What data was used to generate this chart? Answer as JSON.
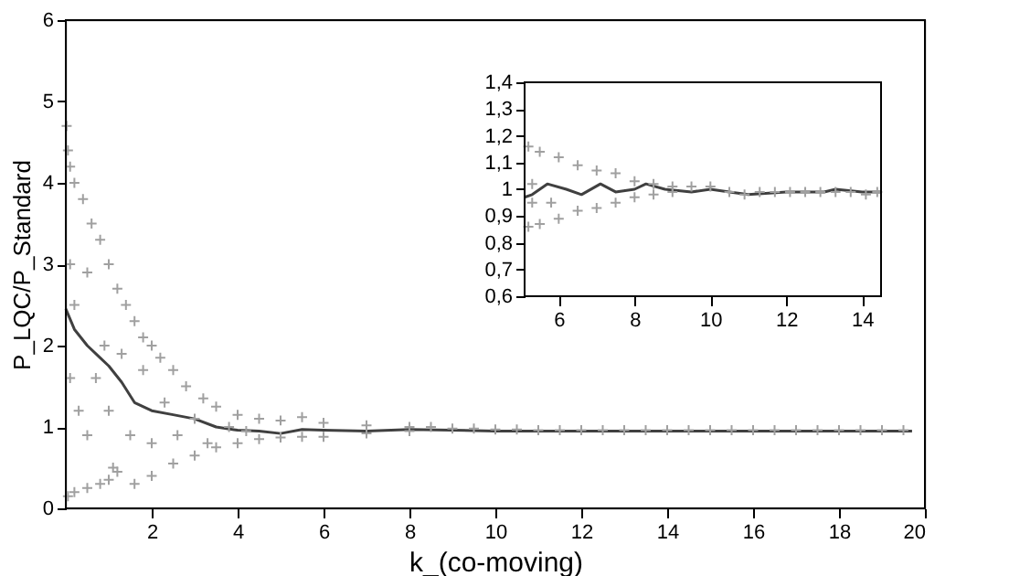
{
  "chart_data": [
    {
      "type": "scatter",
      "xlabel": "k_(co-moving)",
      "ylabel": "P_LQC/P_Standard",
      "xlim": [
        0,
        20
      ],
      "ylim": [
        0,
        6
      ],
      "xticks": [
        2,
        4,
        6,
        8,
        10,
        12,
        14,
        16,
        18,
        20
      ],
      "yticks": [
        0,
        1,
        2,
        3,
        4,
        5,
        6
      ],
      "grid": false,
      "series": [
        {
          "type": "scatter",
          "marker": "cross",
          "color": "#a0a0a0",
          "x": [
            0.02,
            0.05,
            0.1,
            0.2,
            0.4,
            0.6,
            0.8,
            1.0,
            1.2,
            1.4,
            1.6,
            1.8,
            2.0,
            2.2,
            2.5,
            2.8,
            3.2,
            3.5,
            4.0,
            4.5,
            5.0,
            5.5,
            6.0,
            7.0,
            8.0,
            0.05,
            0.2,
            0.5,
            0.8,
            1.0,
            1.2,
            1.6,
            2.0,
            2.5,
            3.0,
            3.5,
            4.0,
            4.5,
            5.0,
            5.5,
            6.0,
            7.0,
            8.0,
            0.1,
            0.1,
            0.2,
            0.3,
            0.5,
            0.5,
            0.7,
            0.9,
            1.0,
            1.1,
            1.3,
            1.5,
            1.8,
            2.0,
            2.3,
            2.6,
            3.0,
            3.3,
            3.8,
            4.2,
            8.5,
            9.0,
            9.5,
            10.0,
            10.5,
            11.0,
            11.5,
            12.0,
            12.5,
            13.0,
            13.5,
            14.0,
            14.5,
            15.0,
            15.5,
            16.0,
            16.5,
            17.0,
            17.5,
            18.0,
            18.5,
            19.0,
            19.5
          ],
          "values": [
            4.7,
            4.4,
            4.2,
            4.0,
            3.8,
            3.5,
            3.3,
            3.0,
            2.7,
            2.5,
            2.3,
            2.1,
            2.0,
            1.85,
            1.7,
            1.5,
            1.35,
            1.25,
            1.15,
            1.1,
            1.08,
            1.12,
            1.05,
            1.02,
            1.0,
            0.15,
            0.2,
            0.25,
            0.3,
            0.35,
            0.45,
            0.3,
            0.4,
            0.55,
            0.65,
            0.75,
            0.8,
            0.85,
            0.87,
            0.88,
            0.88,
            0.92,
            0.95,
            3.0,
            1.6,
            2.5,
            1.2,
            2.9,
            0.9,
            1.6,
            2.0,
            1.2,
            0.5,
            1.9,
            0.9,
            1.7,
            0.8,
            1.3,
            0.9,
            1.1,
            0.8,
            1.0,
            0.95,
            1.0,
            0.98,
            0.98,
            0.97,
            0.97,
            0.96,
            0.96,
            0.96,
            0.96,
            0.96,
            0.96,
            0.96,
            0.96,
            0.96,
            0.96,
            0.96,
            0.96,
            0.96,
            0.96,
            0.96,
            0.96,
            0.96,
            0.96
          ]
        },
        {
          "type": "line",
          "color": "#404040",
          "x": [
            0.0,
            0.2,
            0.5,
            0.8,
            1.0,
            1.3,
            1.6,
            2.0,
            2.5,
            3.0,
            3.5,
            4.0,
            4.5,
            5.0,
            5.5,
            6.0,
            7.0,
            8.0,
            9.0,
            10.0,
            12.0,
            14.0,
            16.0,
            18.0,
            19.7
          ],
          "values": [
            2.45,
            2.2,
            2.0,
            1.85,
            1.75,
            1.55,
            1.3,
            1.2,
            1.15,
            1.1,
            1.0,
            0.96,
            0.95,
            0.92,
            0.97,
            0.96,
            0.95,
            0.97,
            0.96,
            0.95,
            0.95,
            0.95,
            0.95,
            0.95,
            0.95
          ]
        }
      ]
    },
    {
      "type": "scatter",
      "xlim": [
        5.1,
        14.5
      ],
      "ylim": [
        0.6,
        1.4
      ],
      "xticks": [
        6,
        8,
        10,
        12,
        14
      ],
      "yticks": [
        {
          "value": 0.6,
          "label": "0,6"
        },
        {
          "value": 0.7,
          "label": "0,7"
        },
        {
          "value": 0.8,
          "label": "0,8"
        },
        {
          "value": 0.9,
          "label": "0,9"
        },
        1,
        {
          "value": 1.1,
          "label": "1,1"
        },
        {
          "value": 1.2,
          "label": "1,2"
        },
        {
          "value": 1.3,
          "label": "1,3"
        },
        {
          "value": 1.4,
          "label": "1,4"
        }
      ],
      "grid": false,
      "series": [
        {
          "type": "scatter",
          "marker": "cross",
          "color": "#a0a0a0",
          "x": [
            5.2,
            5.5,
            6.0,
            6.5,
            7.0,
            7.5,
            8.0,
            8.5,
            9.0,
            9.5,
            10.0,
            5.2,
            5.5,
            6.0,
            6.5,
            7.0,
            7.5,
            8.0,
            8.5,
            9.0,
            5.3,
            5.3,
            5.8,
            10.5,
            10.9,
            11.3,
            11.7,
            12.1,
            12.5,
            12.9,
            13.3,
            13.7,
            14.1,
            14.4
          ],
          "values": [
            1.16,
            1.14,
            1.12,
            1.09,
            1.07,
            1.06,
            1.03,
            1.02,
            1.01,
            1.01,
            1.01,
            0.86,
            0.87,
            0.89,
            0.92,
            0.93,
            0.95,
            0.97,
            0.98,
            0.99,
            1.02,
            0.95,
            0.95,
            0.99,
            0.98,
            0.99,
            0.99,
            0.99,
            0.99,
            0.99,
            0.99,
            0.99,
            0.98,
            0.99
          ]
        },
        {
          "type": "line",
          "color": "#404040",
          "x": [
            5.1,
            5.3,
            5.7,
            6.2,
            6.6,
            7.1,
            7.5,
            8.0,
            8.3,
            8.8,
            9.5,
            10.0,
            10.5,
            11.0,
            12.0,
            13.0,
            13.3,
            14.0,
            14.5
          ],
          "values": [
            0.97,
            0.98,
            1.02,
            1.0,
            0.98,
            1.02,
            0.99,
            1.0,
            1.02,
            1.0,
            0.99,
            1.0,
            0.99,
            0.98,
            0.99,
            0.99,
            1.0,
            0.99,
            0.99
          ]
        }
      ]
    }
  ]
}
